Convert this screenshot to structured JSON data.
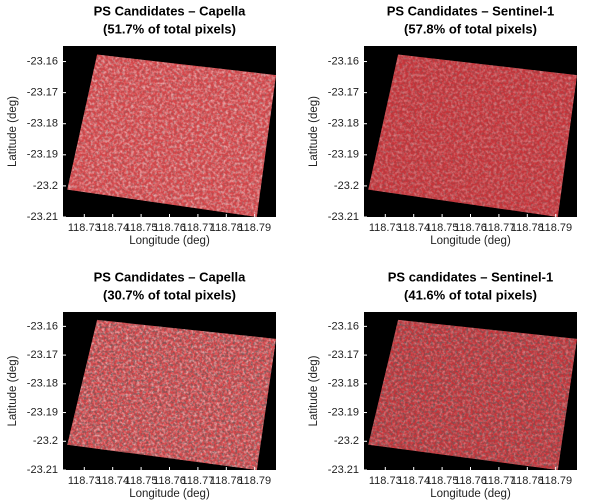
{
  "chart_data": [
    {
      "type": "image",
      "title": "PS Candidates – Capella",
      "subtitle": "(51.7% of total pixels)",
      "x_label": "Longitude (deg)",
      "y_label": "Latitude (deg)",
      "xlim": [
        118.7225,
        118.7975
      ],
      "ylim": [
        -23.21,
        -23.155
      ],
      "xticks": [
        118.73,
        118.74,
        118.75,
        118.76,
        118.77,
        118.78,
        118.79
      ],
      "yticks": [
        -23.16,
        -23.17,
        -23.18,
        -23.19,
        -23.2,
        -23.21
      ]
    },
    {
      "type": "image",
      "title": "PS Candidates – Sentinel-1",
      "subtitle": "(57.8% of total pixels)",
      "x_label": "Longitude (deg)",
      "y_label": "Latitude (deg)",
      "xlim": [
        118.7225,
        118.7975
      ],
      "ylim": [
        -23.21,
        -23.155
      ],
      "xticks": [
        118.73,
        118.74,
        118.75,
        118.76,
        118.77,
        118.78,
        118.79
      ],
      "yticks": [
        -23.16,
        -23.17,
        -23.18,
        -23.19,
        -23.2,
        -23.21
      ]
    },
    {
      "type": "image",
      "title": "PS Candidates – Capella",
      "subtitle": "(30.7% of total pixels)",
      "x_label": "Longitude (deg)",
      "y_label": "Latitude (deg)",
      "xlim": [
        118.7225,
        118.7975
      ],
      "ylim": [
        -23.21,
        -23.155
      ],
      "xticks": [
        118.73,
        118.74,
        118.75,
        118.76,
        118.77,
        118.78,
        118.79
      ],
      "yticks": [
        -23.16,
        -23.17,
        -23.18,
        -23.19,
        -23.2,
        -23.21
      ]
    },
    {
      "type": "image",
      "title": "PS candidates – Sentinel-1",
      "subtitle": "(41.6% of total pixels)",
      "x_label": "Longitude (deg)",
      "y_label": "Latitude (deg)",
      "xlim": [
        118.7225,
        118.7975
      ],
      "ylim": [
        -23.21,
        -23.155
      ],
      "xticks": [
        118.73,
        118.74,
        118.75,
        118.76,
        118.77,
        118.78,
        118.79
      ],
      "yticks": [
        -23.16,
        -23.17,
        -23.18,
        -23.19,
        -23.2,
        -23.21
      ]
    }
  ]
}
